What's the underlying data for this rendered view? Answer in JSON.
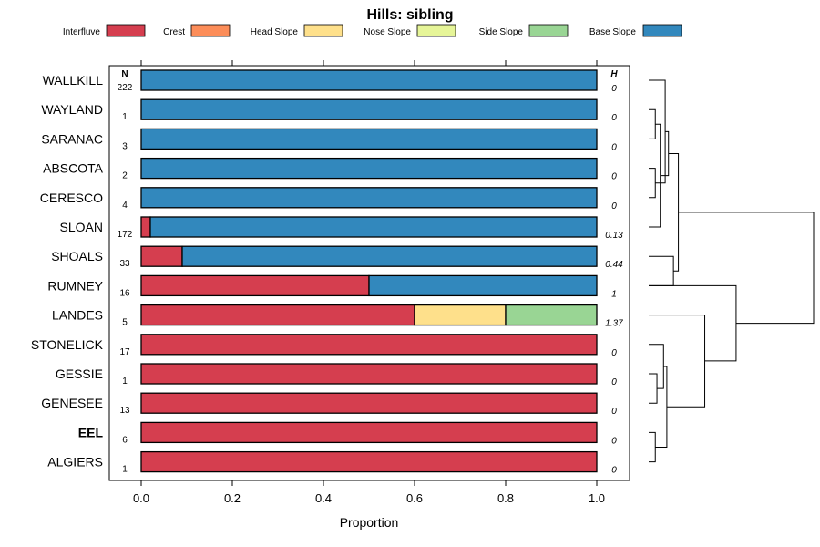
{
  "chart_data": {
    "type": "bar",
    "orientation": "horizontal",
    "stacked": true,
    "title": "Hills: sibling",
    "xlabel": "Proportion",
    "xlim": [
      0,
      1
    ],
    "xticks": [
      "0.0",
      "0.2",
      "0.4",
      "0.6",
      "0.8",
      "1.0"
    ],
    "n_header": "N",
    "h_header": "H",
    "legend": [
      {
        "name": "Interfluve",
        "color": "#D53E4F"
      },
      {
        "name": "Crest",
        "color": "#FC8D59"
      },
      {
        "name": "Head Slope",
        "color": "#FEE08B"
      },
      {
        "name": "Nose Slope",
        "color": "#E6F598"
      },
      {
        "name": "Side Slope",
        "color": "#99D594"
      },
      {
        "name": "Base Slope",
        "color": "#3288BD"
      }
    ],
    "categories": [
      "WALLKILL",
      "WAYLAND",
      "SARANAC",
      "ABSCOTA",
      "CERESCO",
      "SLOAN",
      "SHOALS",
      "RUMNEY",
      "LANDES",
      "STONELICK",
      "GESSIE",
      "GENESEE",
      "EEL",
      "ALGIERS"
    ],
    "highlight": "EEL",
    "n": [
      "222",
      "1",
      "3",
      "2",
      "4",
      "172",
      "33",
      "16",
      "5",
      "17",
      "1",
      "13",
      "6",
      "1"
    ],
    "h": [
      "0",
      "0",
      "0",
      "0",
      "0",
      "0.13",
      "0.44",
      "1",
      "1.37",
      "0",
      "0",
      "0",
      "0",
      "0"
    ],
    "series": [
      {
        "name": "Interfluve",
        "values": [
          0,
          0,
          0,
          0,
          0,
          0.02,
          0.09,
          0.5,
          0.6,
          1,
          1,
          1,
          1,
          1
        ]
      },
      {
        "name": "Crest",
        "values": [
          0,
          0,
          0,
          0,
          0,
          0,
          0,
          0,
          0,
          0,
          0,
          0,
          0,
          0
        ]
      },
      {
        "name": "Head Slope",
        "values": [
          0,
          0,
          0,
          0,
          0,
          0,
          0,
          0,
          0.2,
          0,
          0,
          0,
          0,
          0
        ]
      },
      {
        "name": "Nose Slope",
        "values": [
          0,
          0,
          0,
          0,
          0,
          0,
          0,
          0,
          0,
          0,
          0,
          0,
          0,
          0
        ]
      },
      {
        "name": "Side Slope",
        "values": [
          0,
          0,
          0,
          0,
          0,
          0,
          0,
          0,
          0.2,
          0,
          0,
          0,
          0,
          0
        ]
      },
      {
        "name": "Base Slope",
        "values": [
          1,
          1,
          1,
          1,
          1,
          0.98,
          0.91,
          0.5,
          0,
          0,
          0,
          0,
          0,
          0
        ]
      }
    ],
    "dendrogram": [
      {
        "a": 1,
        "b": 2,
        "h": 0.04
      },
      {
        "a": 3,
        "b": 4,
        "h": 0.04
      },
      {
        "a": 5,
        "b": 14,
        "h": 0.07
      },
      {
        "a": 6,
        "b": 7,
        "h": 0.15
      },
      {
        "a": 0,
        "b": 15,
        "h": 0.1
      },
      {
        "a": 16,
        "b": 18,
        "h": 0.12
      },
      {
        "a": 17,
        "b": 19,
        "h": 0.18
      },
      {
        "a": 10,
        "b": 11,
        "h": 0.05
      },
      {
        "a": 9,
        "b": 21,
        "h": 0.09
      },
      {
        "a": 12,
        "b": 13,
        "h": 0.04
      },
      {
        "a": 22,
        "b": 23,
        "h": 0.11
      },
      {
        "a": 8,
        "b": 24,
        "h": 0.34
      },
      {
        "a": 7,
        "b": 25,
        "h": 0.53
      },
      {
        "a": 20,
        "b": 26,
        "h": 1.0
      }
    ]
  }
}
